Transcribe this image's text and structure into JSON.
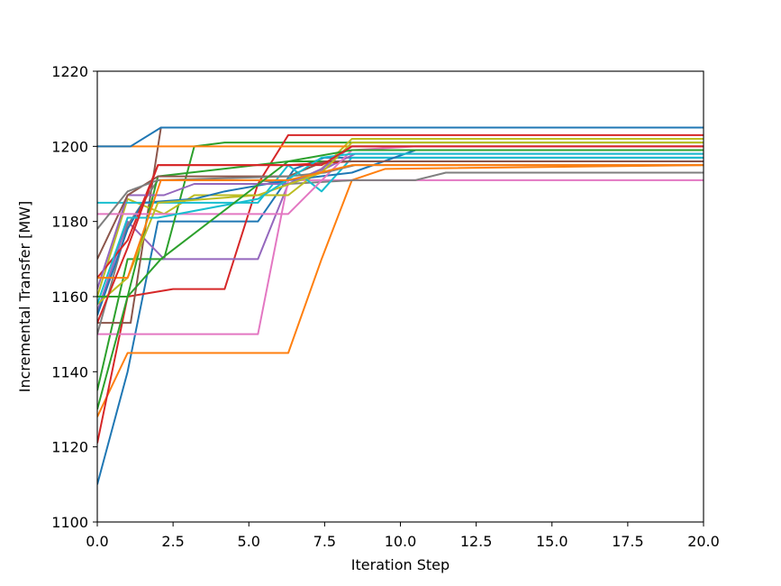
{
  "chart_data": {
    "type": "line",
    "xlabel": "Iteration Step",
    "ylabel": "Incremental Transfer [MW]",
    "xlim": [
      0,
      20
    ],
    "ylim": [
      1100,
      1220
    ],
    "xticks": [
      0.0,
      2.5,
      5.0,
      7.5,
      10.0,
      12.5,
      15.0,
      17.5,
      20.0
    ],
    "xtick_labels": [
      "0.0",
      "2.5",
      "5.0",
      "7.5",
      "10.0",
      "12.5",
      "15.0",
      "17.5",
      "20.0"
    ],
    "yticks": [
      1100,
      1120,
      1140,
      1160,
      1180,
      1200,
      1220
    ],
    "ytick_labels": [
      "1100",
      "1120",
      "1140",
      "1160",
      "1180",
      "1200",
      "1220"
    ],
    "grid": false,
    "series": [
      {
        "color": "#1f77b4",
        "points": [
          [
            0,
            1110
          ],
          [
            1,
            1140
          ],
          [
            2,
            1180
          ],
          [
            5.3,
            1180
          ],
          [
            6.5,
            1194
          ],
          [
            7.5,
            1197
          ],
          [
            8.5,
            1197
          ],
          [
            20,
            1197
          ]
        ]
      },
      {
        "color": "#ff7f0e",
        "points": [
          [
            0,
            1128
          ],
          [
            1,
            1145
          ],
          [
            6.3,
            1145
          ],
          [
            7.4,
            1170
          ],
          [
            8.4,
            1191
          ],
          [
            9.5,
            1194
          ],
          [
            20,
            1195
          ]
        ]
      },
      {
        "color": "#2ca02c",
        "points": [
          [
            0,
            1135
          ],
          [
            1,
            1170
          ],
          [
            2.2,
            1170
          ],
          [
            3.2,
            1200
          ],
          [
            4.2,
            1201
          ],
          [
            20,
            1201
          ]
        ]
      },
      {
        "color": "#d62728",
        "points": [
          [
            0,
            1121
          ],
          [
            1,
            1160
          ],
          [
            2.5,
            1162
          ],
          [
            4.2,
            1162
          ],
          [
            5.3,
            1190
          ],
          [
            6.3,
            1203
          ],
          [
            20,
            1203
          ]
        ]
      },
      {
        "color": "#9467bd",
        "points": [
          [
            0,
            1156
          ],
          [
            1,
            1180
          ],
          [
            2.2,
            1170
          ],
          [
            5.3,
            1170
          ],
          [
            6.3,
            1190
          ],
          [
            7.5,
            1194
          ],
          [
            8.5,
            1198
          ],
          [
            20,
            1198
          ]
        ]
      },
      {
        "color": "#8c564b",
        "points": [
          [
            0,
            1153
          ],
          [
            1.1,
            1153
          ],
          [
            2.1,
            1205
          ],
          [
            20,
            1205
          ]
        ]
      },
      {
        "color": "#e377c2",
        "points": [
          [
            0,
            1150
          ],
          [
            1,
            1150
          ],
          [
            5.3,
            1150
          ],
          [
            6.3,
            1191
          ],
          [
            20,
            1191
          ]
        ]
      },
      {
        "color": "#7f7f7f",
        "points": [
          [
            0,
            1150
          ],
          [
            1,
            1179
          ],
          [
            2,
            1191
          ],
          [
            5.3,
            1191
          ],
          [
            6.3,
            1190
          ],
          [
            8.5,
            1191
          ],
          [
            10.5,
            1191
          ],
          [
            11.5,
            1193
          ],
          [
            20,
            1193
          ]
        ]
      },
      {
        "color": "#bcbd22",
        "points": [
          [
            0,
            1160
          ],
          [
            1,
            1186
          ],
          [
            2.2,
            1182
          ],
          [
            3.2,
            1187
          ],
          [
            6.3,
            1187
          ],
          [
            7.4,
            1194
          ],
          [
            8.4,
            1202
          ],
          [
            20,
            1202
          ]
        ]
      },
      {
        "color": "#17becf",
        "points": [
          [
            0,
            1185
          ],
          [
            1,
            1185
          ],
          [
            5.3,
            1185
          ],
          [
            6.3,
            1195
          ],
          [
            7.4,
            1188
          ],
          [
            8.4,
            1197
          ],
          [
            9.5,
            1197
          ],
          [
            20,
            1197
          ]
        ]
      },
      {
        "color": "#1f77b4",
        "points": [
          [
            0,
            1155
          ],
          [
            1,
            1178
          ],
          [
            1.5,
            1185
          ],
          [
            3.2,
            1186
          ],
          [
            4.2,
            1188
          ],
          [
            6.3,
            1191
          ],
          [
            8.4,
            1193
          ],
          [
            10.5,
            1199
          ],
          [
            20,
            1199
          ]
        ]
      },
      {
        "color": "#ff7f0e",
        "points": [
          [
            0,
            1200
          ],
          [
            8.5,
            1200
          ],
          [
            20,
            1200
          ]
        ]
      },
      {
        "color": "#2ca02c",
        "points": [
          [
            0,
            1130
          ],
          [
            1,
            1160
          ],
          [
            2,
            1192
          ],
          [
            6.3,
            1196
          ],
          [
            8.5,
            1196
          ],
          [
            20,
            1196
          ]
        ]
      },
      {
        "color": "#d62728",
        "points": [
          [
            0,
            1165
          ],
          [
            1,
            1175
          ],
          [
            2,
            1195
          ],
          [
            6.3,
            1195
          ],
          [
            8.4,
            1196
          ],
          [
            20,
            1196
          ]
        ]
      },
      {
        "color": "#9467bd",
        "points": [
          [
            0,
            1162
          ],
          [
            1,
            1187
          ],
          [
            2.2,
            1187
          ],
          [
            3.2,
            1190
          ],
          [
            6.3,
            1190
          ],
          [
            7.4,
            1194
          ],
          [
            8.4,
            1200
          ],
          [
            20,
            1200
          ]
        ]
      },
      {
        "color": "#8c564b",
        "points": [
          [
            0,
            1170
          ],
          [
            1,
            1187
          ],
          [
            2,
            1192
          ],
          [
            6.3,
            1192
          ],
          [
            7.5,
            1196
          ],
          [
            20,
            1196
          ]
        ]
      },
      {
        "color": "#e377c2",
        "points": [
          [
            0,
            1182
          ],
          [
            1,
            1182
          ],
          [
            6.3,
            1182
          ],
          [
            8.4,
            1199
          ],
          [
            10.5,
            1200
          ],
          [
            20,
            1200
          ]
        ]
      },
      {
        "color": "#7f7f7f",
        "points": [
          [
            0,
            1178
          ],
          [
            1,
            1188
          ],
          [
            2,
            1191
          ],
          [
            6.3,
            1192
          ],
          [
            7.5,
            1193
          ],
          [
            8.5,
            1195
          ],
          [
            20,
            1195
          ]
        ]
      },
      {
        "color": "#bcbd22",
        "points": [
          [
            0,
            1158
          ],
          [
            1,
            1165
          ],
          [
            2,
            1185
          ],
          [
            5.3,
            1187
          ],
          [
            7.4,
            1193
          ],
          [
            8.4,
            1201
          ],
          [
            20,
            1201
          ]
        ]
      },
      {
        "color": "#17becf",
        "points": [
          [
            0,
            1158
          ],
          [
            1,
            1181
          ],
          [
            2,
            1181
          ],
          [
            5.3,
            1186
          ],
          [
            7.4,
            1197
          ],
          [
            8.4,
            1198
          ],
          [
            20,
            1198
          ]
        ]
      },
      {
        "color": "#1f77b4",
        "points": [
          [
            0,
            1200
          ],
          [
            1.1,
            1200
          ],
          [
            2.1,
            1205
          ],
          [
            20,
            1205
          ]
        ]
      },
      {
        "color": "#ff7f0e",
        "points": [
          [
            0,
            1165
          ],
          [
            1,
            1165
          ],
          [
            2.1,
            1191
          ],
          [
            6.3,
            1191
          ],
          [
            8.4,
            1195
          ],
          [
            20,
            1195
          ]
        ]
      },
      {
        "color": "#2ca02c",
        "points": [
          [
            0,
            1160
          ],
          [
            1,
            1160
          ],
          [
            2.1,
            1170
          ],
          [
            6.3,
            1196
          ],
          [
            8.4,
            1199
          ],
          [
            20,
            1199
          ]
        ]
      },
      {
        "color": "#d62728",
        "points": [
          [
            0,
            1153
          ],
          [
            1,
            1173
          ],
          [
            2,
            1195
          ],
          [
            6.3,
            1195
          ],
          [
            7.4,
            1195
          ],
          [
            8.4,
            1200
          ],
          [
            20,
            1200
          ]
        ]
      }
    ]
  }
}
